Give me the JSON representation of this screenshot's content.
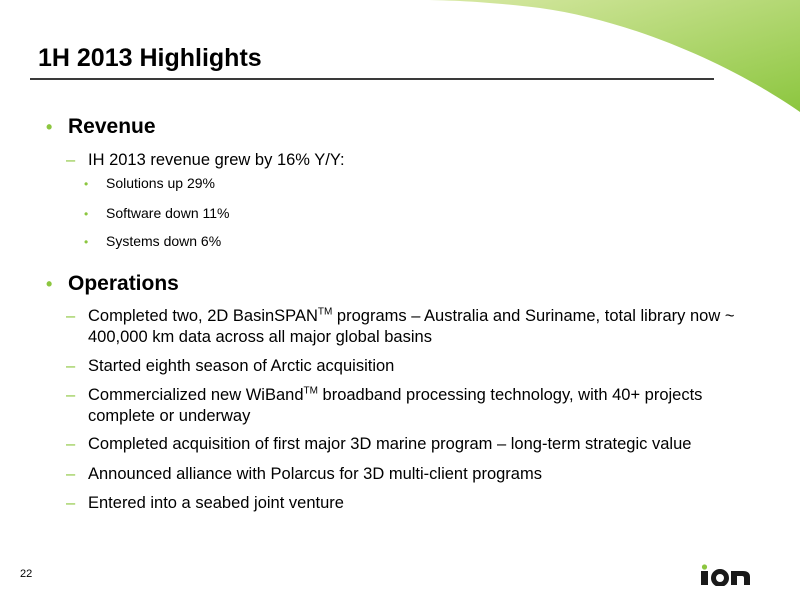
{
  "slide": {
    "title": "1H 2013 Highlights",
    "page_number": "22",
    "logo_text": "ION",
    "colors": {
      "accent": "#8cc63f",
      "swoosh_light": "#c8dc8c",
      "swoosh_dark": "#8cc63f"
    }
  },
  "sections": {
    "revenue": {
      "heading": "Revenue",
      "line": "IH 2013 revenue grew by 16% Y/Y:",
      "sub_items": [
        "Solutions up 29%",
        "Software down 11%",
        "Systems down 6%"
      ]
    },
    "operations": {
      "heading": "Operations",
      "item1_pre": "Completed two, 2D BasinSPAN",
      "item1_tm": "TM",
      "item1_post": " programs – Australia and Suriname, total library now ~ 400,000 km data across all major global basins",
      "item2": "Started eighth season of Arctic acquisition",
      "item3_pre": "Commercialized new WiBand",
      "item3_tm": "TM",
      "item3_post": " broadband processing technology, with 40+ projects complete or underway",
      "item4": "Completed acquisition of first major 3D marine program – long-term strategic value",
      "item5": "Announced alliance with Polarcus for 3D multi-client programs",
      "item6": "Entered into a seabed joint venture"
    }
  }
}
